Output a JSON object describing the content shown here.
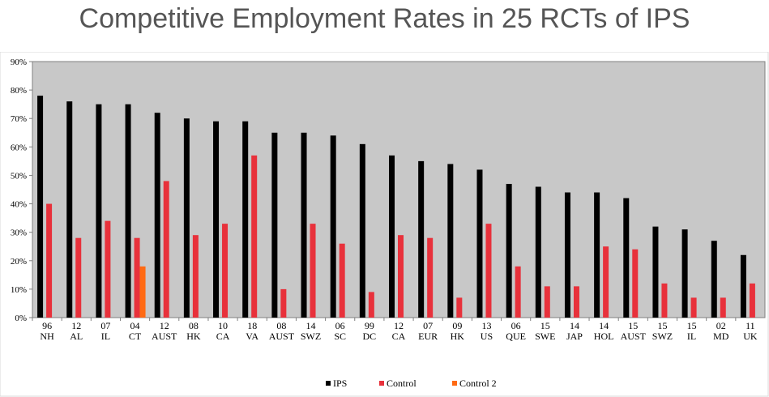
{
  "page": {
    "title": "Competitive Employment Rates in 25 RCTs of IPS"
  },
  "chart_data": {
    "type": "bar",
    "title": "Competitive Employment Rates in 25 RCTs of IPS",
    "xlabel": "",
    "ylabel": "",
    "ylim": [
      0,
      90
    ],
    "yticks": [
      "0%",
      "10%",
      "20%",
      "30%",
      "40%",
      "50%",
      "60%",
      "70%",
      "80%",
      "90%"
    ],
    "grid": false,
    "plot_background": "#c8c8c8",
    "legend_position": "bottom",
    "categories": [
      [
        "96",
        "NH"
      ],
      [
        "12",
        "AL"
      ],
      [
        "07",
        "IL"
      ],
      [
        "04",
        "CT"
      ],
      [
        "12",
        "AUST"
      ],
      [
        "08",
        "HK"
      ],
      [
        "10",
        "CA"
      ],
      [
        "18",
        "VA"
      ],
      [
        "08",
        "AUST"
      ],
      [
        "14",
        "SWZ"
      ],
      [
        "06",
        "SC"
      ],
      [
        "99",
        "DC"
      ],
      [
        "12",
        "CA"
      ],
      [
        "07",
        "EUR"
      ],
      [
        "09",
        "HK"
      ],
      [
        "13",
        "US"
      ],
      [
        "06",
        "QUE"
      ],
      [
        "15",
        "SWE"
      ],
      [
        "14",
        "JAP"
      ],
      [
        "14",
        "HOL"
      ],
      [
        "15",
        "AUST"
      ],
      [
        "15",
        "SWZ"
      ],
      [
        "15",
        "IL"
      ],
      [
        "02",
        "MD"
      ],
      [
        "11",
        "UK"
      ]
    ],
    "series": [
      {
        "name": "IPS",
        "color": "#000000",
        "values": [
          78,
          76,
          75,
          75,
          72,
          70,
          69,
          69,
          65,
          65,
          64,
          61,
          57,
          55,
          54,
          52,
          47,
          46,
          44,
          44,
          42,
          32,
          31,
          27,
          22
        ]
      },
      {
        "name": "Control",
        "color": "#e8313b",
        "values": [
          40,
          28,
          34,
          28,
          48,
          29,
          33,
          57,
          10,
          33,
          26,
          9,
          29,
          28,
          7,
          33,
          18,
          11,
          11,
          25,
          24,
          12,
          7,
          7,
          12
        ]
      },
      {
        "name": "Control 2",
        "color": "#ff6a13",
        "values": [
          null,
          null,
          null,
          18,
          null,
          null,
          null,
          null,
          null,
          null,
          null,
          null,
          null,
          null,
          null,
          null,
          null,
          null,
          null,
          null,
          null,
          null,
          null,
          null,
          null
        ]
      }
    ]
  }
}
